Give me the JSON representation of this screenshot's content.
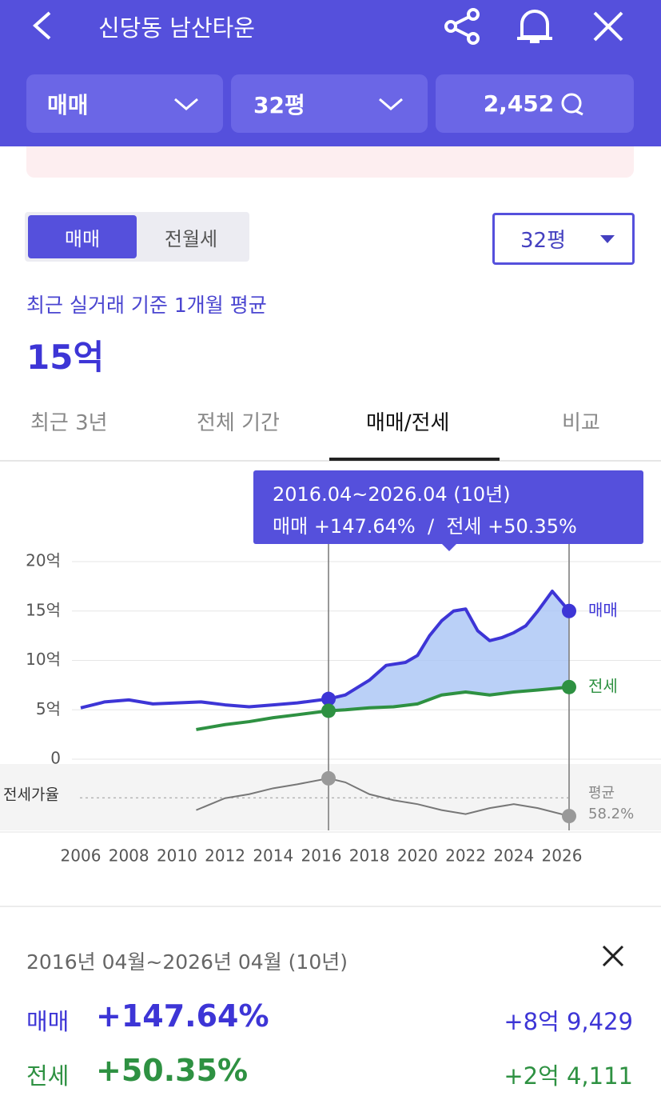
{
  "header": {
    "title": "신당동 남산타운"
  },
  "filters": {
    "trade": "매매",
    "size": "32평",
    "comments": "2,452"
  },
  "toggle": {
    "options": [
      "매매",
      "전월세"
    ],
    "size_select": "32평"
  },
  "summary": {
    "caption": "최근 실거래 기준 1개월 평균",
    "price": "15억"
  },
  "tabs": [
    "최근 3년",
    "전체 기간",
    "매매/전세",
    "비교"
  ],
  "chart_data": {
    "type": "line",
    "xlim": [
      2006,
      2026.3
    ],
    "xticks": [
      2006,
      2008,
      2010,
      2012,
      2014,
      2016,
      2018,
      2020,
      2022,
      2024,
      2026
    ],
    "ylim": [
      0,
      20
    ],
    "yticks": [
      0,
      {
        "value": 5,
        "label": "5억"
      },
      {
        "value": 10,
        "label": "10억"
      },
      {
        "value": 15,
        "label": "15억"
      },
      {
        "value": 20,
        "label": "20억"
      }
    ],
    "grid": true,
    "range": [
      2016.3,
      2026.3
    ],
    "series": [
      {
        "name": "매매",
        "color": "#3d35d6",
        "x": [
          2006,
          2007,
          2008,
          2009,
          2010,
          2011,
          2012,
          2013,
          2014,
          2015,
          2016.3,
          2017,
          2018,
          2018.7,
          2019.5,
          2020,
          2020.5,
          2021,
          2021.5,
          2022,
          2022.5,
          2023,
          2023.5,
          2024,
          2024.5,
          2025,
          2025.6,
          2026.3
        ],
        "values": [
          5.2,
          5.8,
          6.0,
          5.6,
          5.7,
          5.8,
          5.5,
          5.3,
          5.5,
          5.7,
          6.1,
          6.5,
          8.0,
          9.5,
          9.8,
          10.5,
          12.5,
          14.0,
          15.0,
          15.2,
          13.0,
          12.0,
          12.3,
          12.8,
          13.5,
          15.0,
          17.0,
          15.0
        ]
      },
      {
        "name": "전세",
        "color": "#2e9142",
        "x": [
          2010.8,
          2012,
          2013,
          2014,
          2015,
          2016.3,
          2017,
          2018,
          2019,
          2020,
          2021,
          2022,
          2023,
          2024,
          2025,
          2026.3
        ],
        "values": [
          3.0,
          3.5,
          3.8,
          4.2,
          4.5,
          4.9,
          5.0,
          5.2,
          5.3,
          5.6,
          6.5,
          6.8,
          6.5,
          6.8,
          7.0,
          7.3
        ]
      }
    ],
    "tooltip": {
      "period": "2016.04~2026.04 (10년)",
      "sale_label": "매매",
      "sale_change": "+147.64%",
      "separator": "/",
      "jeonse_label": "전세",
      "jeonse_change": "+50.35%"
    },
    "ratio": {
      "name": "전세가율",
      "ylim": [
        45,
        72
      ],
      "x": [
        2010.8,
        2012,
        2013,
        2014,
        2015,
        2016.3,
        2017,
        2018,
        2019,
        2020,
        2021,
        2022,
        2023,
        2024,
        2025,
        2026.3
      ],
      "values": [
        52,
        58,
        60,
        63,
        65,
        68,
        66,
        60,
        57,
        55,
        52,
        50,
        53,
        55,
        53,
        49
      ],
      "average_label": "평균",
      "average": {
        "value": 58.2,
        "label": "58.2%"
      }
    }
  },
  "detail": {
    "period": "2016년 04월~2026년 04월 (10년)",
    "rows": [
      {
        "label": "매매",
        "change": "+147.64%",
        "amount": "+8억 9,429"
      },
      {
        "label": "전세",
        "change": "+50.35%",
        "amount": "+2억 4,111"
      }
    ]
  }
}
